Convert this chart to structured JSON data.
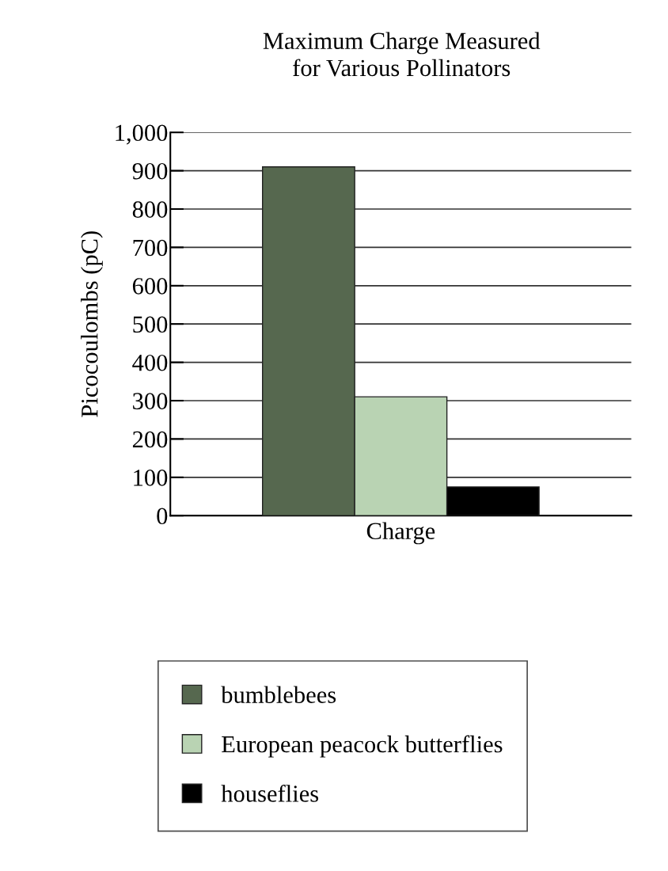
{
  "chart_data": {
    "type": "bar",
    "title": "Maximum Charge Measured\nfor Various Pollinators",
    "ylabel": "Picocoulombs (pC)",
    "xlabel": "Charge",
    "categories": [
      null,
      null,
      null
    ],
    "series": [
      {
        "name": "bumblebees",
        "color": "#56684f",
        "values": [
          910,
          null,
          null
        ]
      },
      {
        "name": "European peacock butterflies",
        "color": "#b9d3b3",
        "values": [
          null,
          310,
          null
        ]
      },
      {
        "name": "houseflies",
        "color": "#000000",
        "values": [
          null,
          null,
          75
        ]
      }
    ],
    "ylim": [
      0,
      1000
    ],
    "yticks": [
      0,
      100,
      200,
      300,
      400,
      500,
      600,
      700,
      800,
      900,
      {
        "value": 1000,
        "label": "1,000"
      }
    ],
    "grid": "y",
    "legend": "bottom"
  }
}
